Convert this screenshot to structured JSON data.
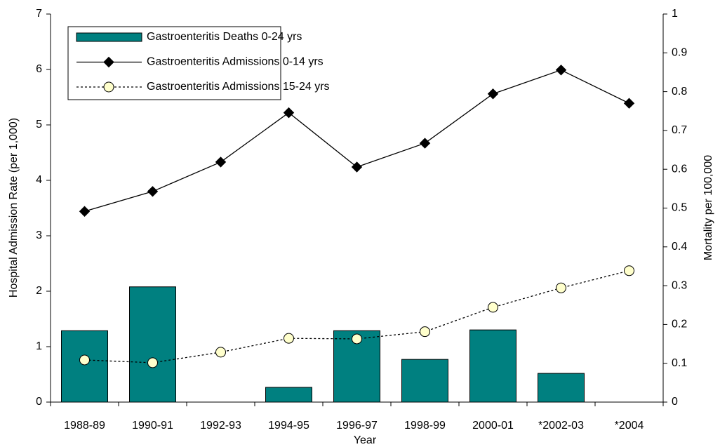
{
  "chart_data": {
    "type": "combo",
    "xlabel": "Year",
    "ylabel": "Hospital Admission Rate (per 1,000)",
    "y2label": "Mortality per 100,000",
    "categories": [
      "1988-89",
      "1990-91",
      "1992-93",
      "1994-95",
      "1996-97",
      "1998-99",
      "2000-01",
      "*2002-03",
      "*2004"
    ],
    "ylim": [
      0,
      7
    ],
    "yticks": [
      0,
      1,
      2,
      3,
      4,
      5,
      6,
      7
    ],
    "y2lim": [
      0,
      1
    ],
    "y2ticks": [
      0,
      0.1,
      0.2,
      0.3,
      0.4,
      0.5,
      0.6,
      0.7,
      0.8,
      0.9,
      1
    ],
    "legend": "upper left",
    "series": [
      {
        "name": "Gastroenteritis Deaths 0-24 yrs",
        "type": "bar",
        "axis": "y2",
        "color": "#008080",
        "values": [
          0.184,
          0.297,
          0,
          0.038,
          0.184,
          0.11,
          0.186,
          0.074,
          0
        ]
      },
      {
        "name": "Gastroenteritis Admissions 0-14 yrs",
        "type": "line",
        "color": "#000000",
        "marker": "diamond",
        "marker_color": "#000000",
        "dash": false,
        "values": [
          3.44,
          3.8,
          4.33,
          5.22,
          4.24,
          4.67,
          5.56,
          5.99,
          5.39
        ]
      },
      {
        "name": "Gastroenteritis Admissions 15-24 yrs",
        "type": "line",
        "color": "#000000",
        "marker": "circle",
        "marker_color": "#ffffcc",
        "dash": true,
        "values": [
          0.76,
          0.71,
          0.9,
          1.15,
          1.14,
          1.27,
          1.71,
          2.06,
          2.37
        ]
      }
    ]
  }
}
